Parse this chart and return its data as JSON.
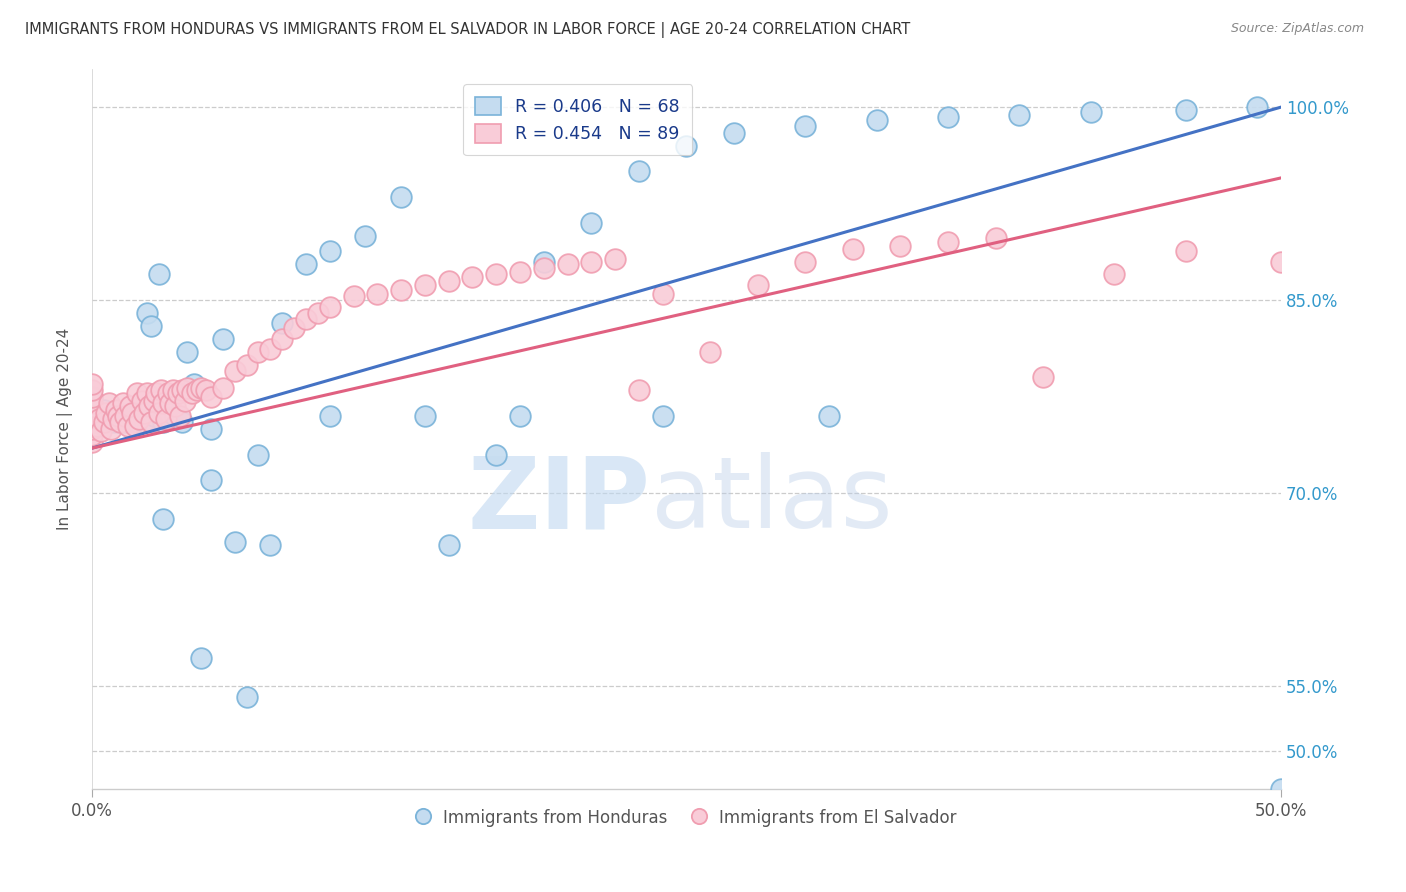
{
  "title": "IMMIGRANTS FROM HONDURAS VS IMMIGRANTS FROM EL SALVADOR IN LABOR FORCE | AGE 20-24 CORRELATION CHART",
  "source": "Source: ZipAtlas.com",
  "ylabel": "In Labor Force | Age 20-24",
  "blue_color": "#7ab3d9",
  "blue_fill": "#c5dcf0",
  "pink_color": "#f09db0",
  "pink_fill": "#f9ccd8",
  "line_blue": "#4472c4",
  "line_pink": "#e06080",
  "legend_text_color": "#1a3a8a",
  "xlim": [
    0.0,
    0.5
  ],
  "ylim": [
    0.47,
    1.03
  ],
  "ytick_vals": [
    0.5,
    0.55,
    0.7,
    0.85,
    1.0
  ],
  "ytick_labels": [
    "50.0%",
    "55.0%",
    "70.0%",
    "85.0%",
    "100.0%"
  ],
  "xtick_vals": [
    0.0,
    0.5
  ],
  "xtick_labels": [
    "0.0%",
    "50.0%"
  ],
  "blue_line_x": [
    0.0,
    0.5
  ],
  "blue_line_y": [
    0.735,
    1.0
  ],
  "pink_line_x": [
    0.0,
    0.5
  ],
  "pink_line_y": [
    0.735,
    0.945
  ],
  "blue_points_x": [
    0.0,
    0.0,
    0.0,
    0.0,
    0.0,
    0.003,
    0.004,
    0.005,
    0.006,
    0.007,
    0.008,
    0.009,
    0.01,
    0.011,
    0.012,
    0.013,
    0.014,
    0.015,
    0.016,
    0.017,
    0.018,
    0.019,
    0.02,
    0.021,
    0.022,
    0.023,
    0.025,
    0.026,
    0.028,
    0.03,
    0.032,
    0.035,
    0.038,
    0.04,
    0.043,
    0.046,
    0.05,
    0.055,
    0.06,
    0.065,
    0.07,
    0.08,
    0.09,
    0.1,
    0.115,
    0.13,
    0.15,
    0.17,
    0.19,
    0.21,
    0.23,
    0.25,
    0.27,
    0.3,
    0.33,
    0.36,
    0.39,
    0.42,
    0.46,
    0.49,
    0.5,
    0.03,
    0.05,
    0.075,
    0.1,
    0.14,
    0.18,
    0.24,
    0.31
  ],
  "blue_points_y": [
    0.755,
    0.76,
    0.765,
    0.77,
    0.775,
    0.755,
    0.76,
    0.765,
    0.755,
    0.76,
    0.755,
    0.76,
    0.755,
    0.76,
    0.755,
    0.76,
    0.755,
    0.758,
    0.762,
    0.755,
    0.76,
    0.755,
    0.758,
    0.762,
    0.755,
    0.84,
    0.83,
    0.76,
    0.87,
    0.755,
    0.758,
    0.76,
    0.755,
    0.81,
    0.785,
    0.572,
    0.71,
    0.82,
    0.662,
    0.542,
    0.73,
    0.832,
    0.878,
    0.888,
    0.9,
    0.93,
    0.66,
    0.73,
    0.88,
    0.91,
    0.95,
    0.97,
    0.98,
    0.985,
    0.99,
    0.992,
    0.994,
    0.996,
    0.998,
    1.0,
    0.47,
    0.68,
    0.75,
    0.66,
    0.76,
    0.76,
    0.76,
    0.76,
    0.76
  ],
  "pink_points_x": [
    0.0,
    0.0,
    0.0,
    0.0,
    0.0,
    0.0,
    0.0,
    0.0,
    0.0,
    0.0,
    0.002,
    0.003,
    0.004,
    0.005,
    0.006,
    0.007,
    0.008,
    0.009,
    0.01,
    0.011,
    0.012,
    0.013,
    0.014,
    0.015,
    0.016,
    0.017,
    0.018,
    0.019,
    0.02,
    0.021,
    0.022,
    0.023,
    0.024,
    0.025,
    0.026,
    0.027,
    0.028,
    0.029,
    0.03,
    0.031,
    0.032,
    0.033,
    0.034,
    0.035,
    0.036,
    0.037,
    0.038,
    0.039,
    0.04,
    0.042,
    0.044,
    0.046,
    0.048,
    0.05,
    0.055,
    0.06,
    0.065,
    0.07,
    0.075,
    0.08,
    0.085,
    0.09,
    0.095,
    0.1,
    0.11,
    0.12,
    0.13,
    0.14,
    0.15,
    0.16,
    0.17,
    0.18,
    0.19,
    0.2,
    0.21,
    0.22,
    0.23,
    0.24,
    0.26,
    0.28,
    0.3,
    0.32,
    0.34,
    0.36,
    0.38,
    0.4,
    0.43,
    0.46,
    0.5
  ],
  "pink_points_y": [
    0.74,
    0.745,
    0.75,
    0.755,
    0.76,
    0.765,
    0.77,
    0.775,
    0.78,
    0.785,
    0.752,
    0.758,
    0.748,
    0.755,
    0.762,
    0.77,
    0.75,
    0.758,
    0.765,
    0.76,
    0.755,
    0.77,
    0.76,
    0.752,
    0.768,
    0.762,
    0.752,
    0.778,
    0.758,
    0.772,
    0.762,
    0.778,
    0.768,
    0.755,
    0.772,
    0.778,
    0.762,
    0.78,
    0.77,
    0.758,
    0.778,
    0.77,
    0.78,
    0.768,
    0.778,
    0.76,
    0.78,
    0.772,
    0.782,
    0.778,
    0.78,
    0.782,
    0.78,
    0.775,
    0.782,
    0.795,
    0.8,
    0.81,
    0.812,
    0.82,
    0.828,
    0.835,
    0.84,
    0.845,
    0.853,
    0.855,
    0.858,
    0.862,
    0.865,
    0.868,
    0.87,
    0.872,
    0.875,
    0.878,
    0.88,
    0.882,
    0.78,
    0.855,
    0.81,
    0.862,
    0.88,
    0.89,
    0.892,
    0.895,
    0.898,
    0.79,
    0.87,
    0.888,
    0.88
  ]
}
